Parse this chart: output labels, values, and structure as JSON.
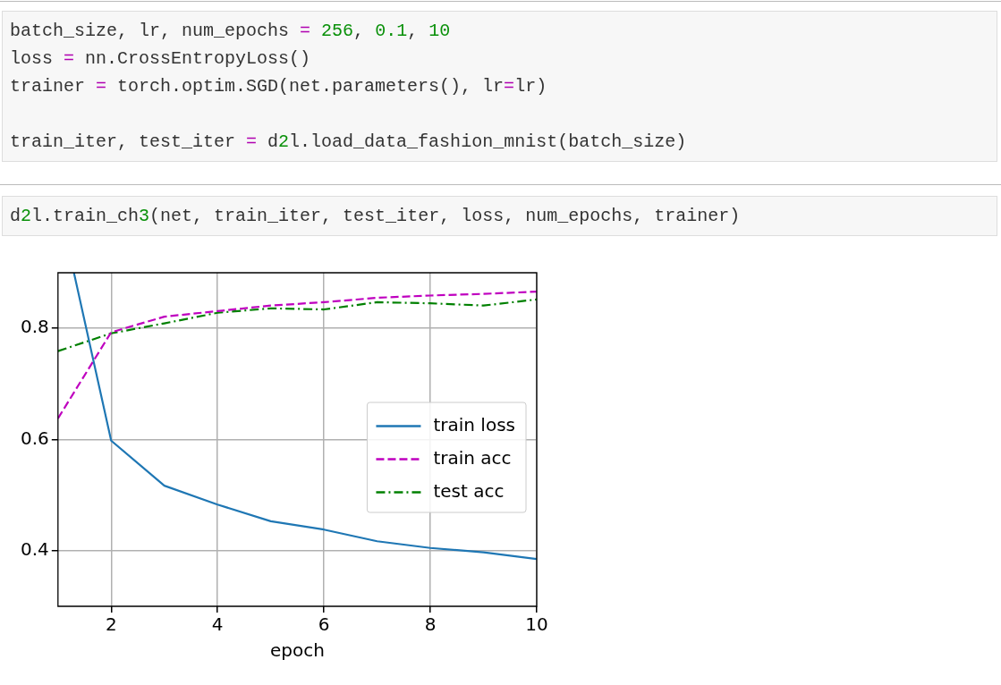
{
  "chart_data": {
    "type": "line",
    "annotations": [
      "batch_size, lr, num_epochs = 256, 0.1, 10\nloss = nn.CrossEntropyLoss()\ntrainer = torch.optim.SGD(net.parameters(), lr=lr)\n\ntrain_iter, test_iter = d2l.load_data_fashion_mnist(batch_size)",
      "d2l.train_ch3(net, train_iter, test_iter, loss, num_epochs, trainer)"
    ],
    "xlabel": "epoch",
    "x": [
      1,
      2,
      3,
      4,
      5,
      6,
      7,
      8,
      9,
      10
    ],
    "series": [
      {
        "name": "train loss",
        "color": "#1f77b4",
        "line_style": "solid",
        "x": [
          1.3,
          2,
          3,
          4,
          5,
          6,
          7,
          8,
          9,
          10
        ],
        "values": [
          0.9,
          0.598,
          0.517,
          0.483,
          0.453,
          0.438,
          0.417,
          0.405,
          0.397,
          0.385
        ]
      },
      {
        "name": "train acc",
        "color": "#bf00bf",
        "line_style": "dashed",
        "values": [
          0.638,
          0.793,
          0.821,
          0.831,
          0.841,
          0.847,
          0.855,
          0.859,
          0.862,
          0.866
        ]
      },
      {
        "name": "test acc",
        "color": "#008000",
        "line_style": "dashdot",
        "values": [
          0.759,
          0.791,
          0.809,
          0.828,
          0.836,
          0.834,
          0.847,
          0.845,
          0.841,
          0.852
        ]
      }
    ],
    "xlim": [
      1,
      10
    ],
    "xticks": [
      2,
      4,
      6,
      8,
      10
    ],
    "ylim": [
      0.3,
      0.9
    ],
    "yticks": [
      0.4,
      0.6,
      0.8
    ],
    "grid": true,
    "legend": "center right",
    "marker": "none"
  }
}
